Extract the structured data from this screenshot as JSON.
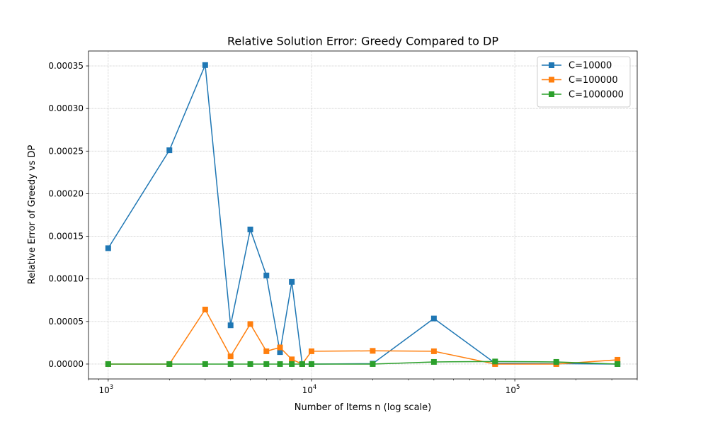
{
  "chart_data": {
    "type": "line",
    "title": "Relative Solution Error: Greedy Compared to DP",
    "xlabel": "Number of Items n (log scale)",
    "ylabel": "Relative Error of Greedy vs DP",
    "xscale": "log",
    "xlim": [
      800,
      400000
    ],
    "ylim": [
      -1.75e-05,
      0.0003675
    ],
    "grid": true,
    "legend_position": "top-right",
    "x": [
      1000,
      2000,
      3000,
      4000,
      5000,
      6000,
      7000,
      8000,
      9000,
      10000,
      20000,
      40000,
      80000,
      160000,
      320000
    ],
    "xticks": [
      {
        "value": 1000,
        "base": "10",
        "exp": "3"
      },
      {
        "value": 10000,
        "base": "10",
        "exp": "4"
      },
      {
        "value": 100000,
        "base": "10",
        "exp": "5"
      }
    ],
    "yticks": [
      {
        "value": 0.0,
        "label": "0.00000"
      },
      {
        "value": 5e-05,
        "label": "0.00005"
      },
      {
        "value": 0.0001,
        "label": "0.00010"
      },
      {
        "value": 0.00015,
        "label": "0.00015"
      },
      {
        "value": 0.0002,
        "label": "0.00020"
      },
      {
        "value": 0.00025,
        "label": "0.00025"
      },
      {
        "value": 0.0003,
        "label": "0.00030"
      },
      {
        "value": 0.00035,
        "label": "0.00035"
      }
    ],
    "series": [
      {
        "name": "C=10000",
        "color": "#1f77b4",
        "marker": "square",
        "values": [
          0.000136,
          0.000251,
          0.000351,
          4.55e-05,
          0.000158,
          0.000104,
          1.4e-05,
          9.65e-05,
          0.0,
          0.0,
          5e-07,
          5.35e-05,
          1e-06,
          5e-07,
          0.0
        ]
      },
      {
        "name": "C=100000",
        "color": "#ff7f0e",
        "marker": "square",
        "values": [
          0.0,
          0.0,
          6.4e-05,
          9e-06,
          4.7e-05,
          1.5e-05,
          1.95e-05,
          5.5e-06,
          0.0,
          1.5e-05,
          1.55e-05,
          1.5e-05,
          0.0,
          0.0,
          5e-06
        ]
      },
      {
        "name": "C=1000000",
        "color": "#2ca02c",
        "marker": "square",
        "values": [
          0.0,
          0.0,
          0.0,
          0.0,
          0.0,
          0.0,
          0.0,
          0.0,
          0.0,
          0.0,
          0.0,
          2.5e-06,
          3e-06,
          2.5e-06,
          0.0
        ]
      }
    ]
  }
}
